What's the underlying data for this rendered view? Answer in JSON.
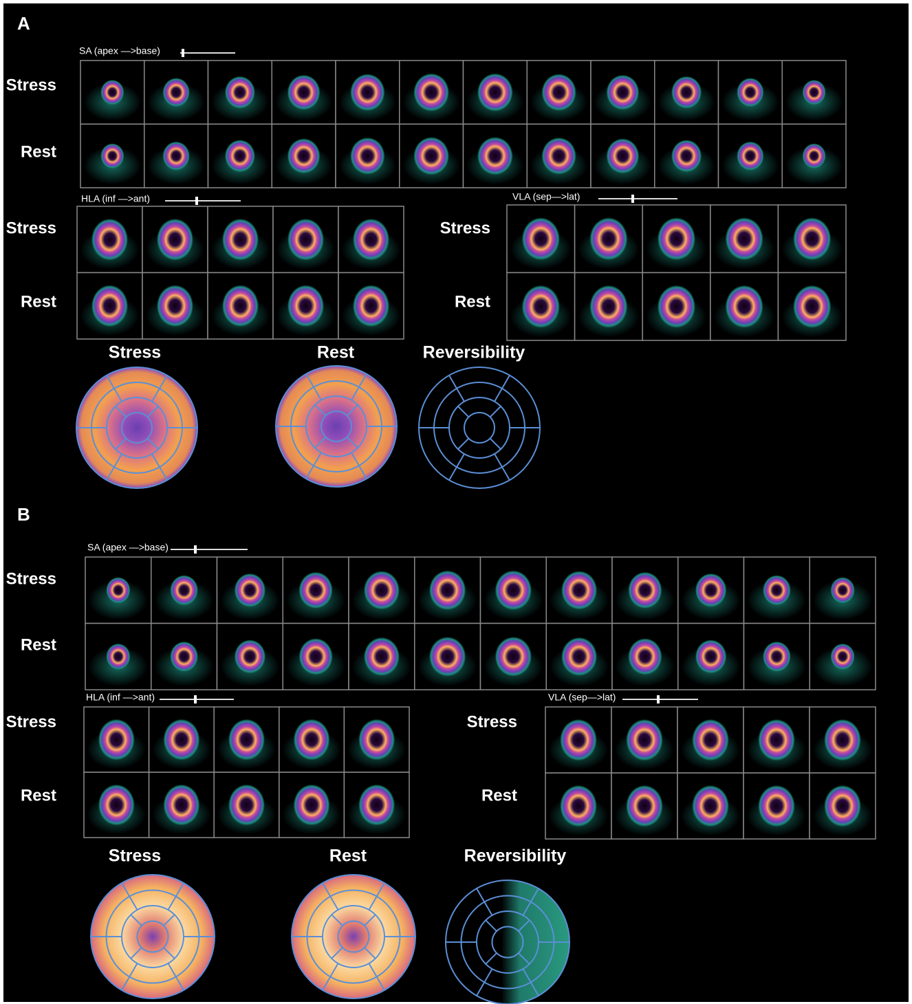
{
  "panels": [
    {
      "label": "A",
      "sa": {
        "label": "SA (apex —>base)",
        "rows": [
          "Stress",
          "Rest"
        ]
      },
      "hla": {
        "label": "HLA (inf —>ant)",
        "rows": [
          "Stress",
          "Rest"
        ]
      },
      "vla": {
        "label": "VLA (sep—>lat)",
        "rows": [
          "Stress",
          "Rest"
        ]
      },
      "polar_maps": [
        "Stress",
        "Rest",
        "Reversibility"
      ]
    },
    {
      "label": "B",
      "sa": {
        "label": "SA (apex —>base)",
        "rows": [
          "Stress",
          "Rest"
        ]
      },
      "hla": {
        "label": "HLA (inf —>ant)",
        "rows": [
          "Stress",
          "Rest"
        ]
      },
      "vla": {
        "label": "VLA (sep—>lat)",
        "rows": [
          "Stress",
          "Rest"
        ]
      },
      "polar_maps": [
        "Stress",
        "Rest",
        "Reversibility"
      ]
    }
  ]
}
